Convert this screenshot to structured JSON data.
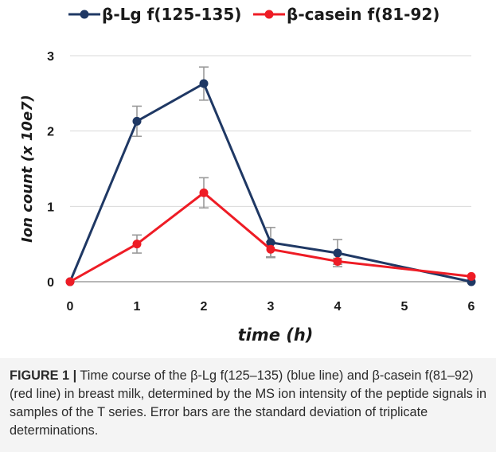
{
  "chart_data": {
    "type": "line",
    "x": [
      0,
      1,
      2,
      3,
      4,
      6
    ],
    "xticks": [
      "0",
      "1",
      "2",
      "3",
      "4",
      "5",
      "6"
    ],
    "yticks": [
      "0",
      "1",
      "2",
      "3"
    ],
    "xlim": [
      0,
      6
    ],
    "ylim": [
      0,
      3
    ],
    "xlabel": "time (h)",
    "ylabel": "Ion count (x 10e7)",
    "grid": "y-major",
    "legend_position": "top",
    "series": [
      {
        "name": "β-Lg f(125-135)",
        "color": "#1f3864",
        "values": [
          0,
          2.13,
          2.63,
          0.52,
          0.38,
          0.0
        ],
        "errors": [
          0,
          0.2,
          0.22,
          0.2,
          0.18,
          0
        ]
      },
      {
        "name": "β-casein f(81-92)",
        "color": "#ee1c25",
        "values": [
          0,
          0.5,
          1.18,
          0.43,
          0.27,
          0.07
        ],
        "errors": [
          0,
          0.12,
          0.2,
          0.1,
          0.04,
          0
        ]
      }
    ]
  },
  "caption": {
    "label": "FIGURE 1 |",
    "text": " Time course of the β-Lg f(125–135) (blue line) and β-casein f(81–92) (red line) in breast milk, determined by the MS ion intensity of the peptide signals in samples of the T series. Error bars are the standard deviation of triplicate determinations."
  }
}
